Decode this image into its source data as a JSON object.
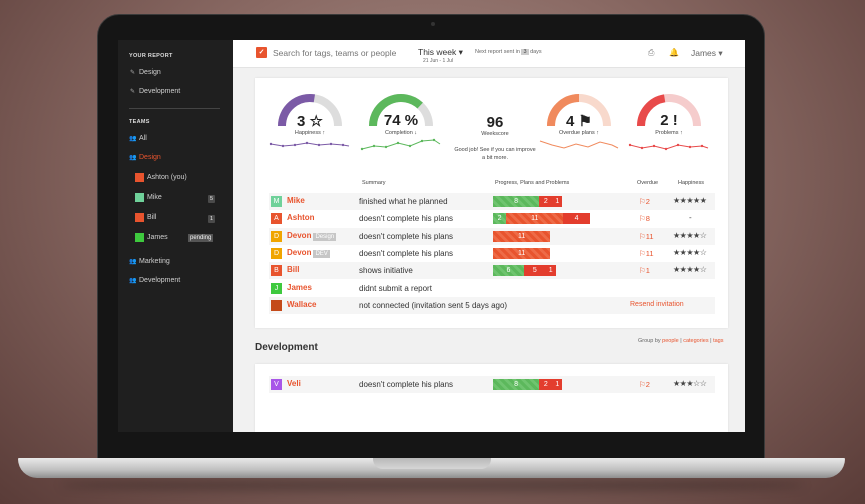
{
  "sidebar": {
    "report_heading": "YOUR REPORT",
    "report_items": [
      {
        "label": "Design"
      },
      {
        "label": "Development"
      }
    ],
    "teams_heading": "TEAMS",
    "teams": [
      {
        "label": "All"
      },
      {
        "label": "Design"
      },
      {
        "label": "Ashton (you)",
        "color": "#e8542e"
      },
      {
        "label": "Mike",
        "color": "#6fd19a",
        "badge": "5"
      },
      {
        "label": "Bill",
        "color": "#e8542e",
        "badge": "1"
      },
      {
        "label": "James",
        "color": "#3ec93e",
        "badge": "pending"
      },
      {
        "label": "Marketing"
      },
      {
        "label": "Development"
      }
    ]
  },
  "topbar": {
    "search_placeholder": "Search for tags, teams or people",
    "week_label": "This week",
    "week_range": "21 Jun - 1 Jul",
    "next_report_text": "Next report sent in",
    "next_report_days": "3",
    "days_label": "days",
    "user_name": "James"
  },
  "kpis": {
    "happiness": {
      "value": "3 ☆",
      "label": "Happiness",
      "arrow": "up",
      "color": "#7b5aa6",
      "fill": 0.55
    },
    "completion": {
      "value": "74 %",
      "label": "Completion",
      "arrow": "down",
      "color": "#5cb85c",
      "fill": 0.74
    },
    "weekscore": {
      "value": "96",
      "label": "Weekscore",
      "message": "Good job! See if you can improve a bit more."
    },
    "overdue": {
      "value": "4",
      "label": "Overdue plans",
      "arrow": "up",
      "color": "#f08a5d",
      "fill": 0.5
    },
    "problems": {
      "value": "2 !",
      "label": "Problems",
      "arrow": "up",
      "color": "#e84a4a",
      "fill": 0.45
    }
  },
  "table": {
    "headers": {
      "summary": "Summary",
      "progress": "Progress, Plans and Problems",
      "overdue": "Overdue",
      "happiness": "Happiness"
    },
    "rows": [
      {
        "initial": "M",
        "name": "Mike",
        "color": "#6fd19a",
        "summary": "finished what he planned",
        "bars": [
          [
            "g",
            "8"
          ],
          [
            "r",
            "2"
          ],
          [
            "r",
            "1"
          ]
        ],
        "overdue": "⚐2",
        "happiness": "★★★★★"
      },
      {
        "initial": "A",
        "name": "Ashton",
        "color": "#e8542e",
        "summary": "doesn't complete his plans",
        "bars": [
          [
            "g",
            "2"
          ],
          [
            "o",
            "11"
          ],
          [
            "r",
            "4"
          ]
        ],
        "overdue": "⚐8",
        "happiness": "-"
      },
      {
        "initial": "D",
        "name": "Devon",
        "color": "#f0a500",
        "tag": "Design",
        "summary": "doesn't complete his plans",
        "bars": [
          [
            "o",
            "11"
          ]
        ],
        "overdue": "⚐11",
        "happiness": "★★★★☆"
      },
      {
        "initial": "D",
        "name": "Devon",
        "color": "#f0a500",
        "tag": "DEV",
        "summary": "doesn't complete his plans",
        "bars": [
          [
            "o",
            "11"
          ]
        ],
        "overdue": "⚐11",
        "happiness": "★★★★☆"
      },
      {
        "initial": "B",
        "name": "Bill",
        "color": "#e8542e",
        "summary": "shows initiative",
        "bars": [
          [
            "g",
            "6"
          ],
          [
            "r",
            "5"
          ],
          [
            "r",
            "1"
          ]
        ],
        "overdue": "⚐1",
        "happiness": "★★★★☆"
      },
      {
        "initial": "J",
        "name": "James",
        "color": "#3ec93e",
        "summary": "didnt submit a report"
      },
      {
        "initial": "",
        "name": "Wallace",
        "color": "#c44a1a",
        "summary": "not connected (invitation sent 5 days ago)",
        "action": "Resend invitation"
      }
    ]
  },
  "groupby": {
    "prefix": "Group by",
    "people": "people",
    "categories": "categories",
    "tags": "tags",
    "sep": "|"
  },
  "development": {
    "title": "Development",
    "rows": [
      {
        "initial": "V",
        "name": "Veli",
        "color": "#a855e8",
        "summary": "doesn't complete his plans",
        "bars": [
          [
            "g",
            "8"
          ],
          [
            "r",
            "2"
          ],
          [
            "r",
            "1"
          ]
        ],
        "overdue": "⚐2",
        "happiness": "★★★☆☆"
      }
    ]
  }
}
